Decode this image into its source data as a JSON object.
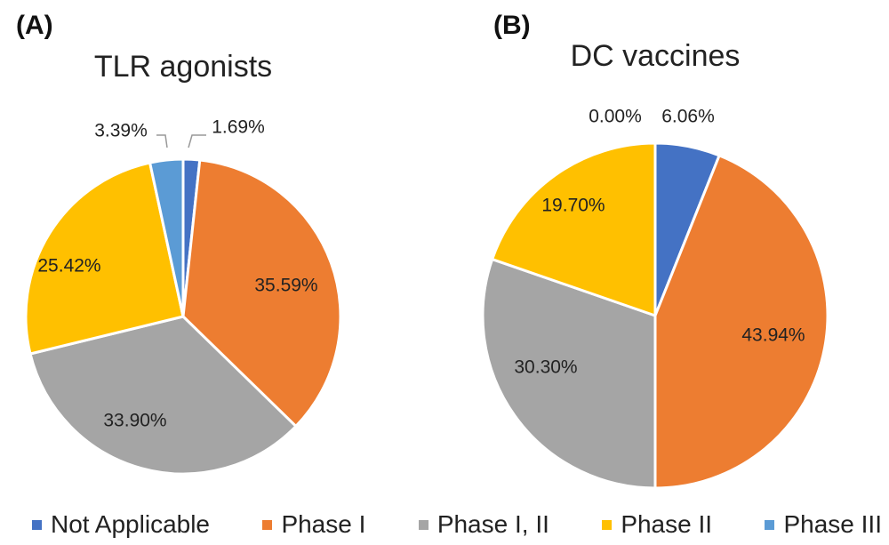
{
  "colors": {
    "Not Applicable": "#4472c4",
    "Phase I": "#ed7d31",
    "Phase I, II": "#a5a5a5",
    "Phase II": "#ffc000",
    "Phase III": "#5b9bd5"
  },
  "legend": [
    "Not Applicable",
    "Phase I",
    "Phase I, II",
    "Phase II",
    "Phase III"
  ],
  "chart_data": [
    {
      "type": "pie",
      "panel": "(A)",
      "title": "TLR agonists",
      "legend_position": "bottom",
      "slices": [
        {
          "category": "Not Applicable",
          "value": 1.69,
          "label": "1.69%"
        },
        {
          "category": "Phase I",
          "value": 35.59,
          "label": "35.59%"
        },
        {
          "category": "Phase I, II",
          "value": 33.9,
          "label": "33.90%"
        },
        {
          "category": "Phase II",
          "value": 25.42,
          "label": "25.42%"
        },
        {
          "category": "Phase III",
          "value": 3.39,
          "label": "3.39%"
        }
      ]
    },
    {
      "type": "pie",
      "panel": "(B)",
      "title": "DC vaccines",
      "legend_position": "bottom",
      "slices": [
        {
          "category": "Not Applicable",
          "value": 6.06,
          "label": "6.06%"
        },
        {
          "category": "Phase I",
          "value": 43.94,
          "label": "43.94%"
        },
        {
          "category": "Phase I, II",
          "value": 30.3,
          "label": "30.30%"
        },
        {
          "category": "Phase II",
          "value": 19.7,
          "label": "19.70%"
        },
        {
          "category": "Phase III",
          "value": 0.0,
          "label": "0.00%"
        }
      ]
    }
  ]
}
